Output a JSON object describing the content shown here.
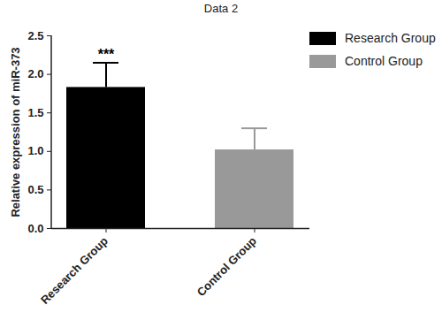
{
  "chart_data": {
    "type": "bar",
    "title": "Data 2",
    "y_label": "Relative expression of miR-373",
    "categories": [
      "Research Group",
      "Control Group"
    ],
    "values": [
      1.83,
      1.02
    ],
    "errors": [
      0.32,
      0.28
    ],
    "colors": [
      "#000000",
      "#999999"
    ],
    "ylim": [
      0,
      2.5
    ],
    "yticks": [
      {
        "value": 0,
        "label": "0.0"
      },
      0.5,
      {
        "value": 1,
        "label": "1.0"
      },
      1.5,
      {
        "value": 2,
        "label": "2.0"
      },
      2.5
    ],
    "annotations": [
      {
        "text": "***",
        "category": "Research Group"
      }
    ],
    "legend": "top-right",
    "grid": false
  }
}
